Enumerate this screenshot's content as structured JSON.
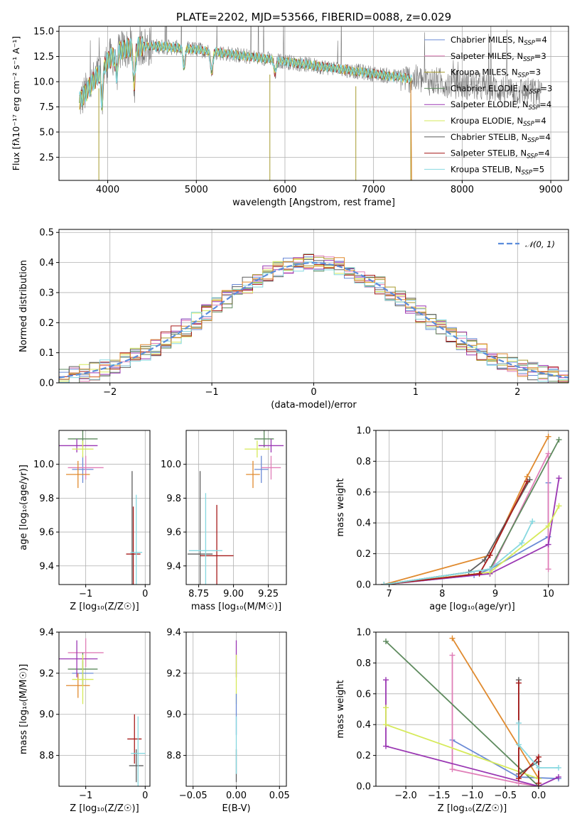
{
  "colors": {
    "CM": "#6a8ad6",
    "SM": "#e07fb8",
    "KM": "#a79b2e",
    "CE": "#5e8a5e",
    "SE": "#9a37b3",
    "KE": "#d6ea5a",
    "CS": "#5e5e5e",
    "SS": "#a61c1c",
    "KS": "#86d8e0",
    "orange": "#e08a2e",
    "norm": "#5b8ddc",
    "grid": "#b0b0b0"
  },
  "chart_data": [
    {
      "id": "spectrum",
      "type": "line",
      "title": "PLATE=2202, MJD=53566, FIBERID=0088, z=0.029",
      "xlabel": "wavelength [Angstrom, rest frame]",
      "ylabel": "Flux [fλ10⁻¹⁷ erg cm⁻² s⁻¹ A⁻¹]",
      "xlim": [
        3450,
        9200
      ],
      "ylim": [
        0.2,
        15.5
      ],
      "xticks": [
        4000,
        5000,
        6000,
        7000,
        8000,
        9000
      ],
      "yticks": [
        2.5,
        5.0,
        7.5,
        10.0,
        12.5,
        15.0
      ],
      "legend_position": "top-right",
      "legend": [
        {
          "key": "CM",
          "label": "Chabrier MILES, N",
          "sub": "SSP",
          "suffix": "=4"
        },
        {
          "key": "SM",
          "label": "Salpeter MILES, N",
          "sub": "SSP",
          "suffix": "=3"
        },
        {
          "key": "KM",
          "label": "Kroupa MILES, N",
          "sub": "SSP",
          "suffix": "=3"
        },
        {
          "key": "CE",
          "label": "Chabrier ELODIE, N",
          "sub": "SSP",
          "suffix": "=3"
        },
        {
          "key": "SE",
          "label": "Salpeter ELODIE, N",
          "sub": "SSP",
          "suffix": "=4"
        },
        {
          "key": "KE",
          "label": "Kroupa ELODIE, N",
          "sub": "SSP",
          "suffix": "=4"
        },
        {
          "key": "CS",
          "label": "Chabrier STELIB, N",
          "sub": "SSP",
          "suffix": "=4"
        },
        {
          "key": "SS",
          "label": "Salpeter STELIB, N",
          "sub": "SSP",
          "suffix": "=4"
        },
        {
          "key": "KS",
          "label": "Kroupa STELIB, N",
          "sub": "SSP",
          "suffix": "=5"
        }
      ],
      "continuum": [
        [
          3680,
          8.0
        ],
        [
          3800,
          9.5
        ],
        [
          3950,
          11.5
        ],
        [
          4100,
          13.0
        ],
        [
          4300,
          13.5
        ],
        [
          4600,
          13.5
        ],
        [
          5000,
          13.2
        ],
        [
          5500,
          12.6
        ],
        [
          6000,
          12.0
        ],
        [
          6500,
          11.4
        ],
        [
          7000,
          10.8
        ],
        [
          7500,
          10.2
        ],
        [
          8000,
          9.7
        ],
        [
          8500,
          9.2
        ],
        [
          8900,
          8.8
        ]
      ],
      "model_range": [
        3680,
        7430
      ],
      "absorption": [
        [
          3935,
          8.0
        ],
        [
          4100,
          10.7
        ],
        [
          4300,
          9.8
        ],
        [
          4861,
          11.4
        ],
        [
          5175,
          11.0
        ],
        [
          5890,
          10.8
        ]
      ],
      "spikes": [
        [
          3900,
          0.2
        ],
        [
          5830,
          0.2
        ],
        [
          6800,
          0.2
        ],
        [
          7420,
          0.2
        ]
      ]
    },
    {
      "id": "residuals",
      "type": "histogram",
      "xlabel": "(data-model)/error",
      "ylabel": "Normed distribution",
      "xlim": [
        -2.5,
        2.5
      ],
      "ylim": [
        0,
        0.51
      ],
      "xticks": [
        -2,
        -1,
        0,
        1,
        2
      ],
      "yticks": [
        0.0,
        0.1,
        0.2,
        0.3,
        0.4,
        0.5
      ],
      "bin_width": 0.1,
      "legend": [
        {
          "key": "norm",
          "label": "𝒩(0, 1)"
        }
      ],
      "legend_position": "top-right"
    },
    {
      "id": "age-vs-Z",
      "type": "errorbar",
      "xlabel": "Z [log₁₀(Z/Z☉)]",
      "ylabel": "age  [log₁₀(age/yr)]",
      "xlim": [
        -1.45,
        0.08
      ],
      "ylim": [
        9.29,
        10.2
      ],
      "xticks": [
        -1,
        0
      ],
      "yticks": [
        9.4,
        9.6,
        9.8,
        10.0
      ],
      "points": [
        {
          "key": "CM",
          "x": -1.05,
          "y": 9.97,
          "xerr": 0.18,
          "yerr": 0.08
        },
        {
          "key": "SM",
          "x": -1.0,
          "y": 9.98,
          "xerr": 0.3,
          "yerr": 0.07
        },
        {
          "key": "orange",
          "x": -1.13,
          "y": 9.94,
          "xerr": 0.2,
          "yerr": 0.08
        },
        {
          "key": "CE",
          "x": -1.05,
          "y": 10.15,
          "xerr": 0.25,
          "yerr": 0.05
        },
        {
          "key": "SE",
          "x": -1.15,
          "y": 10.11,
          "xerr": 0.35,
          "yerr": 0.04
        },
        {
          "key": "KE",
          "x": -1.05,
          "y": 10.09,
          "xerr": 0.18,
          "yerr": 0.05
        },
        {
          "key": "CS",
          "x": -0.22,
          "y": 9.47,
          "xerr": 0.03,
          "yerr": 0.49
        },
        {
          "key": "SS",
          "x": -0.2,
          "y": 9.47,
          "xerr": 0.12,
          "yerr": 0.28
        },
        {
          "key": "KS",
          "x": -0.15,
          "y": 9.48,
          "xerr": 0.1,
          "yerr": 0.34
        }
      ]
    },
    {
      "id": "age-vs-mass",
      "type": "errorbar",
      "xlabel": "mass [log₁₀(M/M☉)]",
      "ylabel": "",
      "xlim": [
        8.66,
        9.38
      ],
      "ylim": [
        9.29,
        10.2
      ],
      "xticks": [
        8.75,
        9.0,
        9.25
      ],
      "yticks": [
        9.4,
        9.6,
        9.8,
        10.0
      ],
      "points": [
        {
          "key": "CM",
          "x": 9.2,
          "y": 9.97,
          "xerr": 0.05,
          "yerr": 0.08
        },
        {
          "key": "SM",
          "x": 9.27,
          "y": 9.98,
          "xerr": 0.07,
          "yerr": 0.07
        },
        {
          "key": "orange",
          "x": 9.14,
          "y": 9.94,
          "xerr": 0.05,
          "yerr": 0.08
        },
        {
          "key": "CE",
          "x": 9.22,
          "y": 10.15,
          "xerr": 0.07,
          "yerr": 0.05
        },
        {
          "key": "SE",
          "x": 9.27,
          "y": 10.11,
          "xerr": 0.09,
          "yerr": 0.04
        },
        {
          "key": "KE",
          "x": 9.17,
          "y": 10.09,
          "xerr": 0.09,
          "yerr": 0.05
        },
        {
          "key": "CS",
          "x": 8.76,
          "y": 9.47,
          "xerr": 0.09,
          "yerr": 0.49
        },
        {
          "key": "SS",
          "x": 8.88,
          "y": 9.46,
          "xerr": 0.12,
          "yerr": 0.3
        },
        {
          "key": "KS",
          "x": 8.8,
          "y": 9.49,
          "xerr": 0.12,
          "yerr": 0.34
        }
      ]
    },
    {
      "id": "weight-vs-age",
      "type": "line",
      "xlabel": "age  [log₁₀(age/yr)]",
      "ylabel": "mass weight",
      "xlim": [
        6.75,
        10.38
      ],
      "ylim": [
        0,
        1.0
      ],
      "xticks": [
        7,
        8,
        9,
        10
      ],
      "yticks": [
        0.0,
        0.2,
        0.4,
        0.6,
        0.8,
        1.0
      ],
      "series": [
        {
          "key": "CM",
          "points": [
            [
              6.9,
              0.0
            ],
            [
              8.6,
              0.06
            ],
            [
              8.9,
              0.1
            ],
            [
              10.0,
              0.31
            ],
            [
              10.0,
              0.66
            ]
          ]
        },
        {
          "key": "SM",
          "points": [
            [
              6.9,
              0.0
            ],
            [
              8.9,
              0.08
            ],
            [
              10.0,
              0.85
            ],
            [
              10.0,
              0.1
            ]
          ]
        },
        {
          "key": "orange",
          "points": [
            [
              6.9,
              0.0
            ],
            [
              8.9,
              0.19
            ],
            [
              9.6,
              0.7
            ],
            [
              10.0,
              0.96
            ]
          ]
        },
        {
          "key": "CE",
          "points": [
            [
              6.9,
              0.0
            ],
            [
              8.9,
              0.1
            ],
            [
              10.2,
              0.94
            ]
          ]
        },
        {
          "key": "SE",
          "points": [
            [
              6.9,
              0.0
            ],
            [
              8.9,
              0.07
            ],
            [
              10.0,
              0.26
            ],
            [
              10.2,
              0.69
            ]
          ]
        },
        {
          "key": "KE",
          "points": [
            [
              6.9,
              0.0
            ],
            [
              8.9,
              0.08
            ],
            [
              10.0,
              0.38
            ],
            [
              10.2,
              0.51
            ]
          ]
        },
        {
          "key": "CS",
          "points": [
            [
              6.9,
              0.0
            ],
            [
              8.5,
              0.08
            ],
            [
              8.8,
              0.16
            ],
            [
              9.65,
              0.68
            ]
          ]
        },
        {
          "key": "SS",
          "points": [
            [
              6.9,
              0.0
            ],
            [
              8.7,
              0.07
            ],
            [
              8.9,
              0.19
            ],
            [
              9.6,
              0.67
            ]
          ]
        },
        {
          "key": "KS",
          "points": [
            [
              6.9,
              0.0
            ],
            [
              8.9,
              0.1
            ],
            [
              9.5,
              0.27
            ],
            [
              9.7,
              0.41
            ]
          ]
        }
      ]
    },
    {
      "id": "mass-vs-Z",
      "type": "errorbar",
      "xlabel": "Z [log₁₀(Z/Z☉)]",
      "ylabel": "mass [log₁₀(M/M☉)]",
      "xlim": [
        -1.45,
        0.08
      ],
      "ylim": [
        8.65,
        9.4
      ],
      "xticks": [
        -1,
        0
      ],
      "yticks": [
        8.8,
        9.0,
        9.2,
        9.4
      ],
      "points": [
        {
          "key": "CM",
          "x": -1.05,
          "y": 9.2,
          "xerr": 0.18,
          "yerr": 0.06
        },
        {
          "key": "SM",
          "x": -1.0,
          "y": 9.3,
          "xerr": 0.3,
          "yerr": 0.07
        },
        {
          "key": "orange",
          "x": -1.13,
          "y": 9.14,
          "xerr": 0.2,
          "yerr": 0.06
        },
        {
          "key": "CE",
          "x": -1.05,
          "y": 9.22,
          "xerr": 0.25,
          "yerr": 0.08
        },
        {
          "key": "SE",
          "x": -1.15,
          "y": 9.27,
          "xerr": 0.35,
          "yerr": 0.09
        },
        {
          "key": "KE",
          "x": -1.05,
          "y": 9.17,
          "xerr": 0.18,
          "yerr": 0.12
        },
        {
          "key": "CS",
          "x": -0.15,
          "y": 8.75,
          "xerr": 0.12,
          "yerr": 0.08
        },
        {
          "key": "SS",
          "x": -0.18,
          "y": 8.88,
          "xerr": 0.12,
          "yerr": 0.12
        },
        {
          "key": "KS",
          "x": -0.12,
          "y": 8.81,
          "xerr": 0.12,
          "yerr": 0.18
        }
      ]
    },
    {
      "id": "mass-vs-EBV",
      "type": "errorbar",
      "xlabel": "E(B-V)",
      "ylabel": "",
      "xlim": [
        -0.058,
        0.058
      ],
      "ylim": [
        8.65,
        9.4
      ],
      "xticks": [
        -0.05,
        0.0,
        0.05
      ],
      "yticks": [
        8.8,
        9.0,
        9.2,
        9.4
      ],
      "points": [
        {
          "key": "SE",
          "x": 0.0,
          "y": 9.27,
          "xerr": 0.0,
          "yerr": 0.09
        },
        {
          "key": "KE",
          "x": 0.0,
          "y": 9.17,
          "xerr": 0.0,
          "yerr": 0.12
        },
        {
          "key": "CM",
          "x": 0.0,
          "y": 9.0,
          "xerr": 0.0,
          "yerr": 0.1
        },
        {
          "key": "CS",
          "x": 0.0,
          "y": 8.75,
          "xerr": 0.0,
          "yerr": 0.08
        },
        {
          "key": "KS",
          "x": 0.0,
          "y": 8.85,
          "xerr": 0.0,
          "yerr": 0.14
        }
      ]
    },
    {
      "id": "weight-vs-Z",
      "type": "line",
      "xlabel": "Z [log₁₀(Z/Z☉)]",
      "ylabel": "mass weight",
      "xlim": [
        -2.45,
        0.45
      ],
      "ylim": [
        0,
        1.0
      ],
      "xticks": [
        -2.0,
        -1.5,
        -1.0,
        -0.5,
        0.0
      ],
      "yticks": [
        0.0,
        0.2,
        0.4,
        0.6,
        0.8,
        1.0
      ],
      "series": [
        {
          "key": "CM",
          "points": [
            [
              -1.3,
              0.3
            ],
            [
              -0.3,
              0.06
            ],
            [
              0.3,
              0.05
            ]
          ]
        },
        {
          "key": "SM",
          "points": [
            [
              -1.3,
              0.85
            ],
            [
              -1.3,
              0.11
            ],
            [
              -0.3,
              0.02
            ],
            [
              0.0,
              0.0
            ]
          ]
        },
        {
          "key": "orange",
          "points": [
            [
              -1.3,
              0.96
            ],
            [
              0.0,
              0.05
            ]
          ]
        },
        {
          "key": "CE",
          "points": [
            [
              -2.3,
              0.94
            ],
            [
              0.0,
              0.0
            ]
          ]
        },
        {
          "key": "SE",
          "points": [
            [
              -2.3,
              0.69
            ],
            [
              -2.3,
              0.26
            ],
            [
              0.0,
              0.0
            ],
            [
              0.3,
              0.06
            ]
          ]
        },
        {
          "key": "KE",
          "points": [
            [
              -2.3,
              0.51
            ],
            [
              -2.3,
              0.4
            ],
            [
              0.0,
              0.05
            ],
            [
              0.0,
              0.0
            ]
          ]
        },
        {
          "key": "CS",
          "points": [
            [
              -0.3,
              0.69
            ],
            [
              -0.3,
              0.08
            ],
            [
              0.0,
              0.16
            ],
            [
              0.0,
              0.0
            ]
          ]
        },
        {
          "key": "SS",
          "points": [
            [
              -0.3,
              0.67
            ],
            [
              -0.3,
              0.05
            ],
            [
              0.0,
              0.19
            ],
            [
              0.0,
              0.02
            ]
          ]
        },
        {
          "key": "KS",
          "points": [
            [
              -0.3,
              0.41
            ],
            [
              -0.3,
              0.27
            ],
            [
              0.0,
              0.12
            ],
            [
              0.3,
              0.12
            ]
          ]
        }
      ]
    }
  ]
}
